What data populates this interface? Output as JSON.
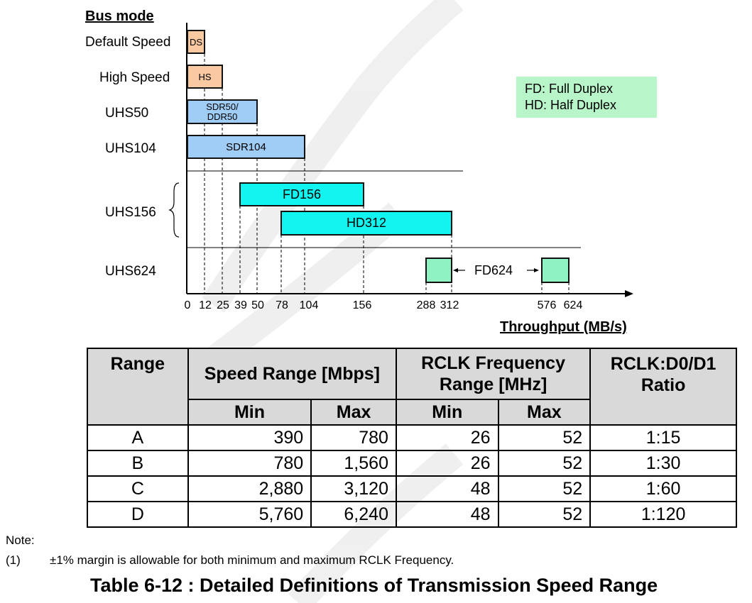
{
  "diagram": {
    "title": "Bus mode",
    "modes": [
      "Default Speed",
      "High Speed",
      "UHS50",
      "UHS104",
      "UHS156",
      "UHS624"
    ],
    "bars": {
      "ds": "DS",
      "hs": "HS",
      "sdr50": [
        "SDR50/",
        "DDR50"
      ],
      "sdr104": "SDR104",
      "fd156": "FD156",
      "hd312": "HD312",
      "fd624": "FD624"
    },
    "ticks": [
      "0",
      "12",
      "25",
      "39",
      "50",
      "78",
      "104",
      "156",
      "288",
      "312",
      "576",
      "624"
    ],
    "xlabel": "Throughput (MB/s)",
    "legend": [
      "FD: Full Duplex",
      "HD: Half Duplex"
    ],
    "colors": {
      "orange": "#f9c9a1",
      "blue": "#9fcdf6",
      "cyan": "#12f4ef",
      "green": "#8ff2c2",
      "legend": "#b8f5c8"
    }
  },
  "table": {
    "headers": {
      "range": "Range",
      "speed": "Speed Range [Mbps]",
      "rclk": "RCLK Frequency Range [MHz]",
      "ratio": "RCLK:D0/D1 Ratio",
      "min": "Min",
      "max": "Max"
    },
    "rows": [
      {
        "range": "A",
        "speed_min": "390",
        "speed_max": "780",
        "rclk_min": "26",
        "rclk_max": "52",
        "ratio": "1:15"
      },
      {
        "range": "B",
        "speed_min": "780",
        "speed_max": "1,560",
        "rclk_min": "26",
        "rclk_max": "52",
        "ratio": "1:30"
      },
      {
        "range": "C",
        "speed_min": "2,880",
        "speed_max": "3,120",
        "rclk_min": "48",
        "rclk_max": "52",
        "ratio": "1:60"
      },
      {
        "range": "D",
        "speed_min": "5,760",
        "speed_max": "6,240",
        "rclk_min": "48",
        "rclk_max": "52",
        "ratio": "1:120"
      }
    ]
  },
  "note": {
    "title": "Note:",
    "number": "(1)",
    "text": "±1% margin is allowable for both minimum and maximum RCLK Frequency."
  },
  "caption": "Table 6-12 : Detailed Definitions of Transmission Speed Range"
}
